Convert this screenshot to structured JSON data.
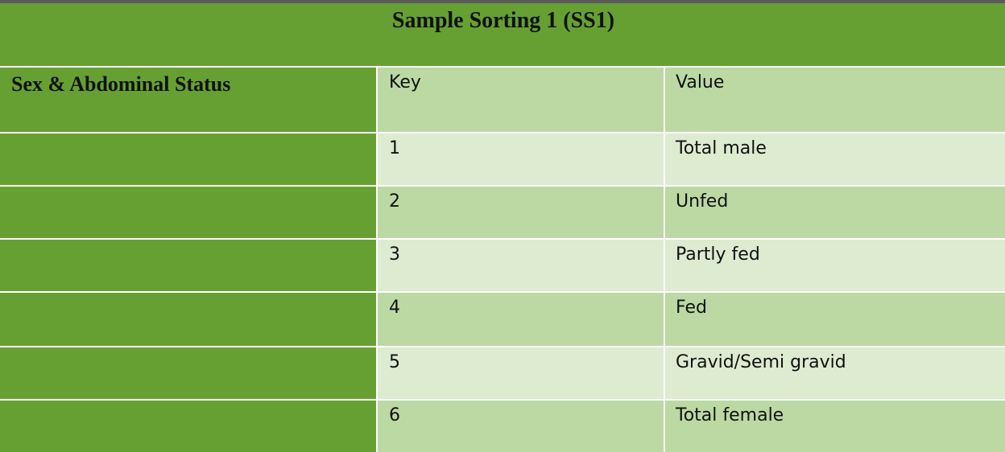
{
  "table": {
    "title": "Sample Sorting 1 (SS1)",
    "row_label": "Sex & Abdominal Status",
    "headers": {
      "key": "Key",
      "value": "Value"
    },
    "rows": [
      {
        "key": "1",
        "value": "Total male"
      },
      {
        "key": "2",
        "value": "Unfed"
      },
      {
        "key": "3",
        "value": "Partly fed"
      },
      {
        "key": "4",
        "value": "Fed"
      },
      {
        "key": "5",
        "value": "Gravid/Semi gravid"
      },
      {
        "key": "6",
        "value": "Total female"
      }
    ]
  },
  "colors": {
    "dark_green": "#66a032",
    "mid_green": "#bcd9a4",
    "light_green": "#ddebd0"
  }
}
